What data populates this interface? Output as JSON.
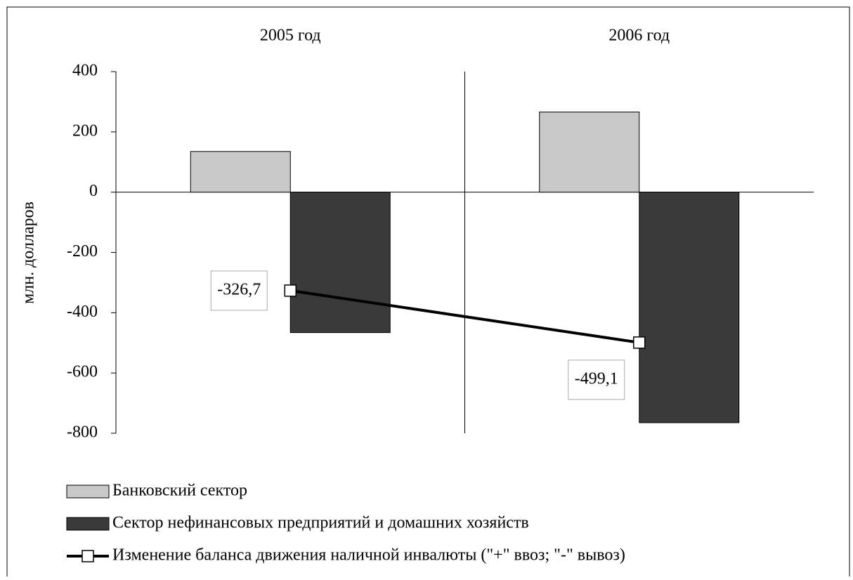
{
  "chart_data": {
    "type": "bar",
    "categories": [
      "2005 год",
      "2006 год"
    ],
    "y_label": "млн. долларов",
    "ylim": [
      -800,
      400
    ],
    "yticks": [
      -800,
      -600,
      -400,
      -200,
      0,
      200,
      400
    ],
    "series": [
      {
        "name": "Банковский сектор",
        "color": "#c8c8c8",
        "values": [
          135,
          266
        ]
      },
      {
        "name": "Сектор нефинансовых предприятий и домашних хозяйств",
        "color": "#3a3a3a",
        "values": [
          -466,
          -765
        ]
      },
      {
        "name": "Изменение баланса движения наличной инвалюты (\"+\" ввоз; \"-\" вывоз)",
        "type": "line",
        "color": "#000000",
        "values": [
          -326.7,
          -499.1
        ],
        "value_labels": [
          "-326,7",
          "-499,1"
        ]
      }
    ]
  }
}
